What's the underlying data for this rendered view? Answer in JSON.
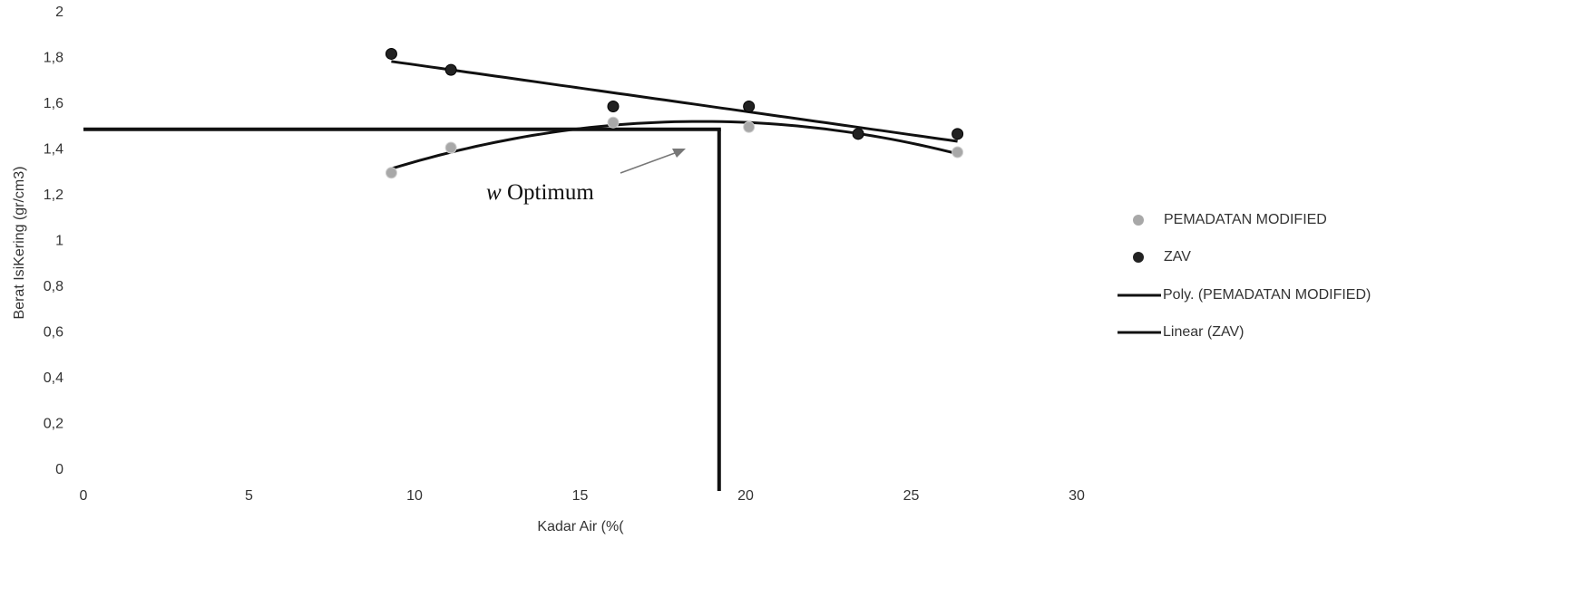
{
  "chart_data": {
    "type": "scatter",
    "x_label": "Kadar Air (%(",
    "y_label": "Berat IsiKering (gr/cm3)",
    "xlim": [
      0,
      30
    ],
    "xticks": [
      0,
      5,
      10,
      15,
      20,
      25,
      30
    ],
    "ylim": [
      0,
      2
    ],
    "yticks": [
      0,
      {
        "value": 0.2,
        "label": "0,2"
      },
      {
        "value": 0.4,
        "label": "0,4"
      },
      {
        "value": 0.6,
        "label": "0,6"
      },
      {
        "value": 0.8,
        "label": "0,8"
      },
      1,
      {
        "value": 1.2,
        "label": "1,2"
      },
      {
        "value": 1.4,
        "label": "1,4"
      },
      {
        "value": 1.6,
        "label": "1,6"
      },
      {
        "value": 1.8,
        "label": "1,8"
      },
      2
    ],
    "grid": false,
    "legend": "right",
    "series": [
      {
        "name": "PEMADATAN MODIFIED",
        "color": "#a8a8a8",
        "x": [
          9.3,
          11.1,
          16.0,
          20.1,
          23.4,
          26.4
        ],
        "values": [
          1.3,
          1.41,
          1.52,
          1.5,
          1.47,
          1.39
        ]
      },
      {
        "name": "ZAV",
        "color": "#222222",
        "x": [
          9.3,
          11.1,
          16.0,
          20.1,
          23.4,
          26.4
        ],
        "values": [
          1.82,
          1.75,
          1.59,
          1.59,
          1.47,
          1.47
        ]
      }
    ],
    "trendlines": [
      {
        "name": "Poly. (PEMADATAN MODIFIED)",
        "fit": "poly2",
        "series": 0,
        "color": "#111111"
      },
      {
        "name": "Linear (ZAV)",
        "fit": "linear",
        "series": 1,
        "color": "#111111"
      }
    ],
    "optimum": {
      "x": 19.2,
      "y": 1.49,
      "symbol": "w",
      "text": "Optimum"
    }
  }
}
